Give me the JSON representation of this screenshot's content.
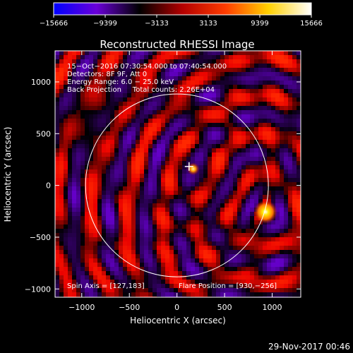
{
  "chart_data": {
    "type": "heatmap",
    "title": "Reconstructed RHESSI Image",
    "xlabel": "Heliocentric X (arcsec)",
    "ylabel": "Heliocentric Y (arcsec)",
    "xlim": [
      -1280,
      1300
    ],
    "ylim": [
      -1080,
      1300
    ],
    "xticks": [
      -1000,
      -500,
      0,
      500,
      1000
    ],
    "xtick_labels": [
      "−1000",
      "−500",
      "0",
      "500",
      "1000"
    ],
    "yticks": [
      -1000,
      -500,
      0,
      500,
      1000
    ],
    "ytick_labels": [
      "−1000",
      "−500",
      "0",
      "500",
      "1000"
    ],
    "colorbar": {
      "range": [
        -15666,
        15666
      ],
      "ticks": [
        -15666,
        -9399,
        -3133,
        3133,
        9399,
        15666
      ],
      "tick_labels": [
        "−15666",
        "−9399",
        "−3133",
        "3133",
        "9399",
        "15666"
      ],
      "colors": [
        "#0000ff",
        "#6a00d8",
        "#000000",
        "#b40000",
        "#ff3c00",
        "#ffd000",
        "#ffffff"
      ]
    },
    "info_lines": [
      "15−Oct−2016 07:30:54.000 to 07:40:54.000",
      "Detectors: 8F 9F, Att 0",
      "Energy Range: 6.0 − 25.0 keV",
      "Back Projection     Total counts: 2.26E+04"
    ],
    "spin_axis": "Spin Axis = [127,183]",
    "flare_position_text": "Flare Position = [930,−256]",
    "flare_position": [
      930,
      -256
    ],
    "spin_axis_point": [
      127,
      183
    ],
    "secondary_source": [
      170,
      160
    ],
    "solar_disk_radius": 960,
    "background_color": "#000000"
  },
  "footer": {
    "date": "29-Nov-2017 00:46"
  }
}
